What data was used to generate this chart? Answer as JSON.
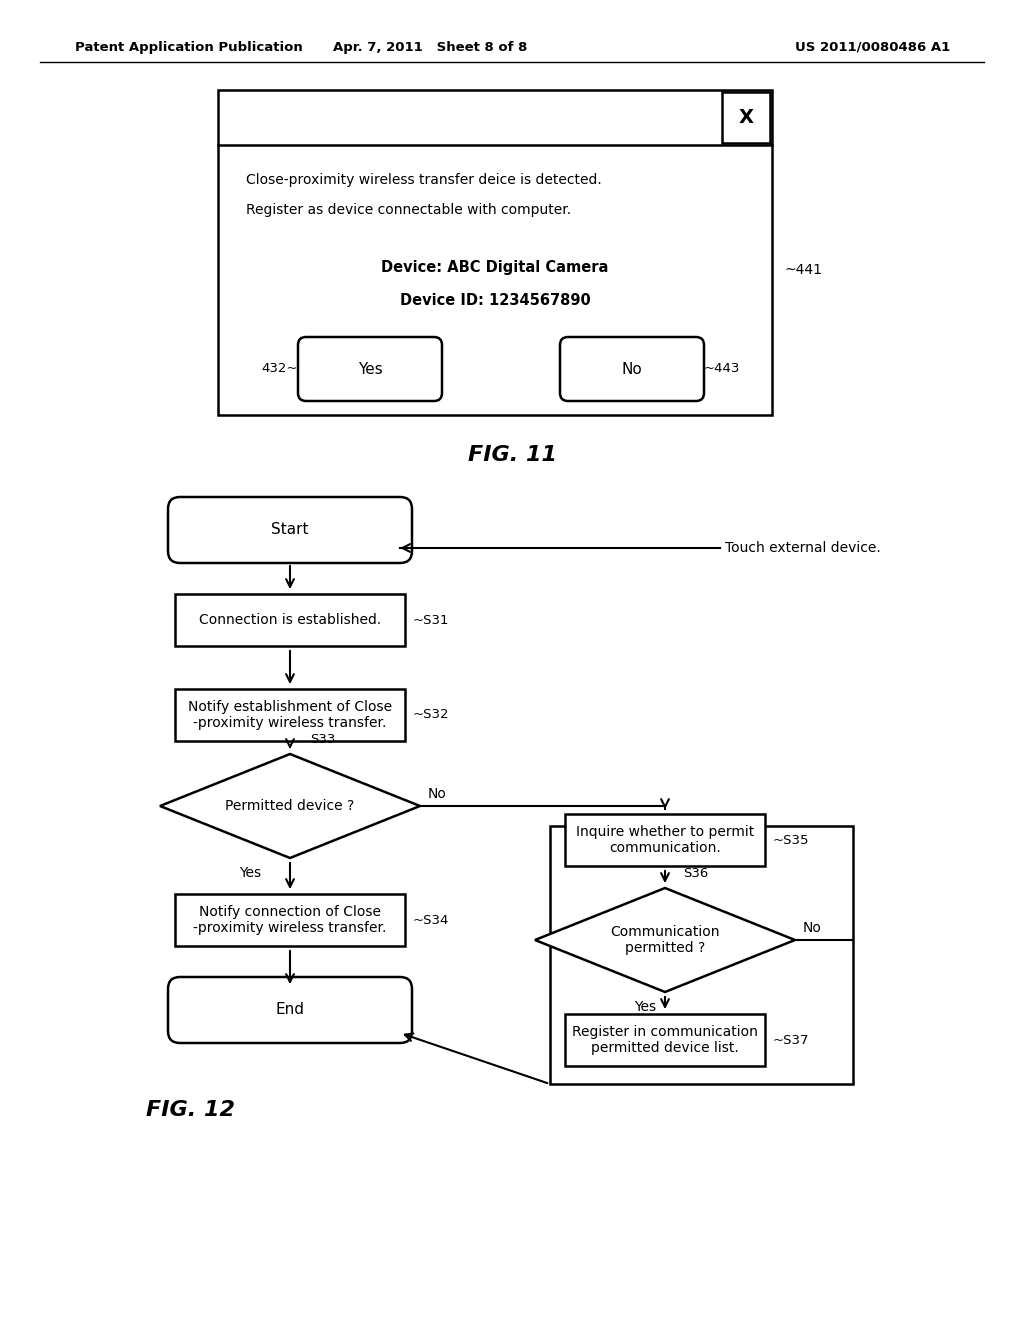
{
  "bg_color": "#ffffff",
  "header_left": "Patent Application Publication",
  "header_center": "Apr. 7, 2011   Sheet 8 of 8",
  "header_right": "US 2011/0080486 A1",
  "fig11_label": "FIG. 11",
  "fig12_label": "FIG. 12",
  "dialog_text_line1": "Close-proximity wireless transfer deice is detected.",
  "dialog_text_line2": "Register as device connectable with computer.",
  "dialog_device": "Device: ABC Digital Camera",
  "dialog_id": "Device ID: 1234567890",
  "dialog_ref": "441",
  "btn_yes_label": "Yes",
  "btn_yes_ref": "432",
  "btn_no_label": "No",
  "btn_no_ref": "443",
  "touch_label": "Touch external device.",
  "start_label": "Start",
  "end_label": "End",
  "s31_label": "Connection is established.",
  "s31_ref": "~S31",
  "s32_label": "Notify establishment of Close\n-proximity wireless transfer.",
  "s32_ref": "~S32",
  "s33_label": "Permitted device ?",
  "s33_ref": "S33",
  "s33_no": "No",
  "s33_yes": "Yes",
  "s34_label": "Notify connection of Close\n-proximity wireless transfer.",
  "s34_ref": "~S34",
  "s35_label": "Inquire whether to permit\ncommunication.",
  "s35_ref": "~S35",
  "s36_label": "Communication\npermitted ?",
  "s36_ref": "S36",
  "s36_no": "No",
  "s36_yes": "Yes",
  "s37_label": "Register in communication\npermitted device list.",
  "s37_ref": "~S37"
}
